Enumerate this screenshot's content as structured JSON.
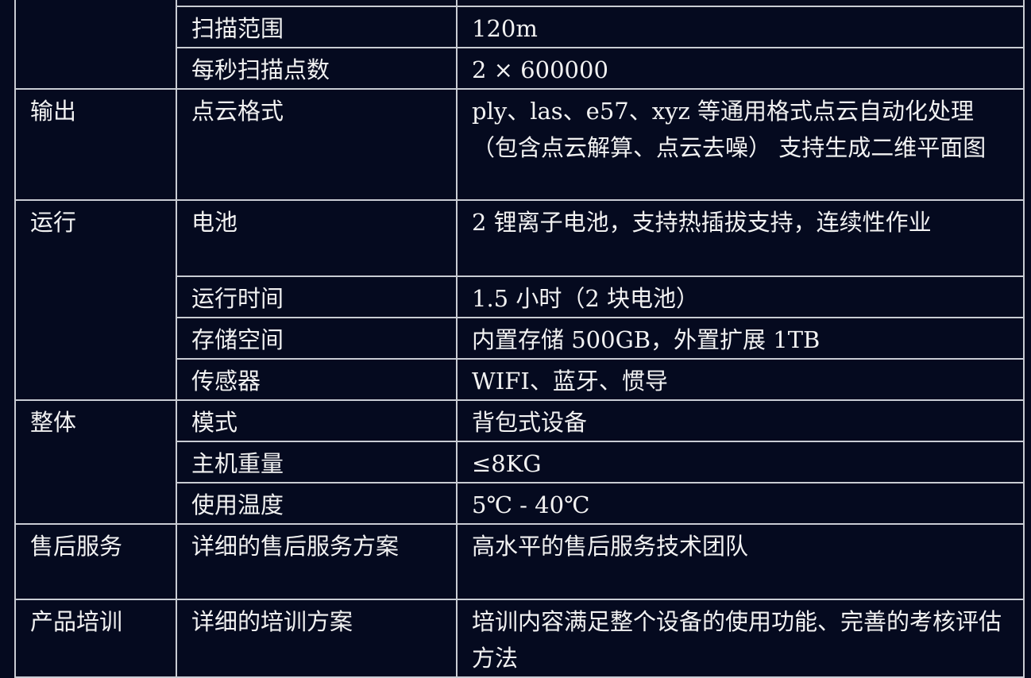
{
  "table": {
    "rows": [
      {
        "category": "",
        "item": "",
        "value": ""
      },
      {
        "item": "扫描范围",
        "value": "120m"
      },
      {
        "item": "每秒扫描点数",
        "value": "2 × 600000"
      },
      {
        "category": "输出",
        "item": "点云格式",
        "value": "ply、las、e57、xyz 等通用格式点云自动化处理（包含点云解算、点云去噪） 支持生成二维平面图"
      },
      {
        "category": "运行",
        "item": "电池",
        "value": "2 锂离子电池，支持热插拔支持，连续性作业"
      },
      {
        "item": "运行时间",
        "value": "1.5 小时（2 块电池）"
      },
      {
        "item": "存储空间",
        "value": "内置存储 500GB，外置扩展 1TB"
      },
      {
        "item": "传感器",
        "value": "WIFI、蓝牙、惯导"
      },
      {
        "category": "整体",
        "item": "模式",
        "value": "背包式设备"
      },
      {
        "item": "主机重量",
        "value": "≤8KG"
      },
      {
        "item": "使用温度",
        "value": "5℃ - 40℃"
      },
      {
        "category": "售后服务",
        "item": "详细的售后服务方案",
        "value": "高水平的售后服务技术团队"
      },
      {
        "category": "产品培训",
        "item": "详细的培训方案",
        "value": "培训内容满足整个设备的使用功能、完善的考核评估方法"
      }
    ]
  }
}
